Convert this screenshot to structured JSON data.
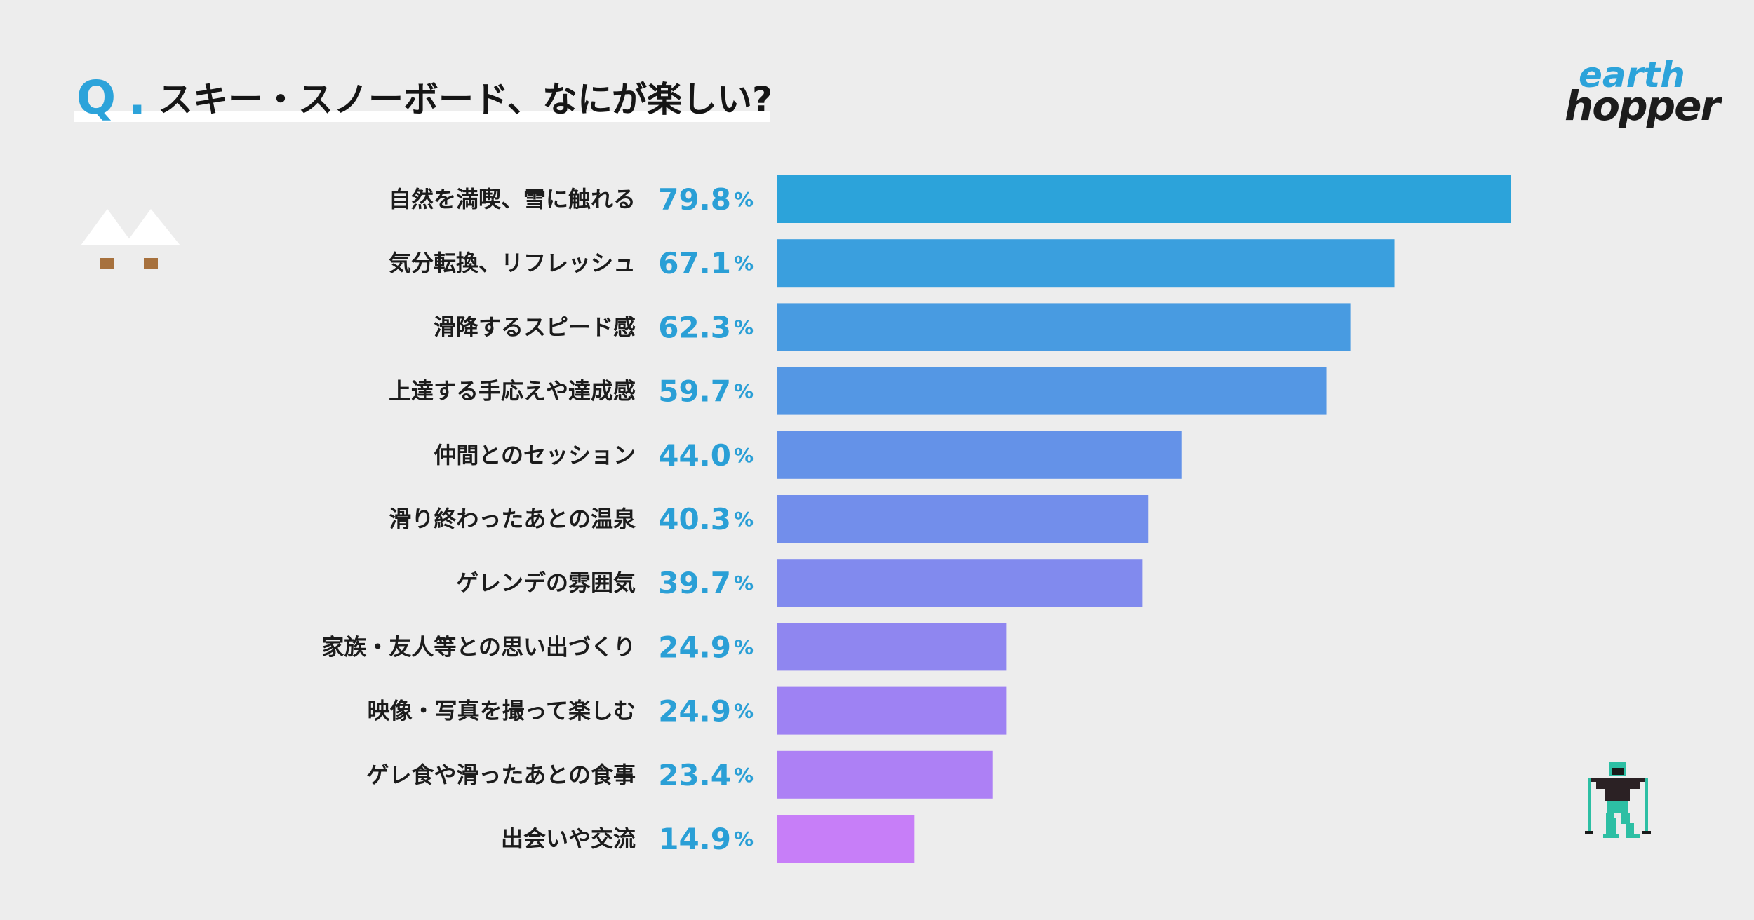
{
  "header": {
    "q_mark": "Q",
    "q_dot": ".",
    "title": "スキー・スノーボード、なにが楽しい?"
  },
  "logo": {
    "line1": "earth",
    "line2": "hopper"
  },
  "colors": {
    "background": "#ededed",
    "accent": "#2ca3da",
    "bar_start": "#2ca3da",
    "bar_end": "#c77ef8"
  },
  "chart_data": {
    "type": "bar",
    "orientation": "horizontal",
    "title": "スキー・スノーボード、なにが楽しい?",
    "unit": "%",
    "xlim": [
      0,
      80
    ],
    "categories": [
      "自然を満喫、雪に触れる",
      "気分転換、リフレッシュ",
      "滑降するスピード感",
      "上達する手応えや達成感",
      "仲間とのセッション",
      "滑り終わったあとの温泉",
      "ゲレンデの雰囲気",
      "家族・友人等との思い出づくり",
      "映像・写真を撮って楽しむ",
      "ゲレ食や滑ったあとの食事",
      "出会いや交流"
    ],
    "values": [
      79.8,
      67.1,
      62.3,
      59.7,
      44.0,
      40.3,
      39.7,
      24.9,
      24.9,
      23.4,
      14.9
    ],
    "value_labels": [
      "79.8",
      "67.1",
      "62.3",
      "59.7",
      "44.0",
      "40.3",
      "39.7",
      "24.9",
      "24.9",
      "23.4",
      "14.9"
    ],
    "bar_colors": [
      "#2ca3da",
      "#3a9fde",
      "#489be1",
      "#5497e4",
      "#6492e8",
      "#728eeb",
      "#818aee",
      "#8f86f0",
      "#9e82f3",
      "#ad80f5",
      "#c77ef8"
    ]
  }
}
